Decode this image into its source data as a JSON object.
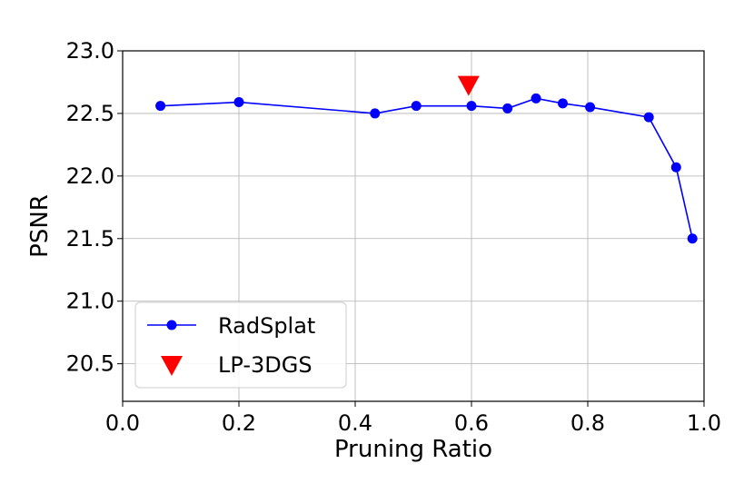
{
  "chart_data": {
    "type": "line",
    "title": "",
    "xlabel": "Pruning Ratio",
    "ylabel": "PSNR",
    "xlim": [
      0.0,
      1.0
    ],
    "ylim": [
      20.2,
      23.0
    ],
    "xticks": [
      0.0,
      0.2,
      0.4,
      0.6,
      0.8,
      1.0
    ],
    "xtick_labels": [
      "0.0",
      "0.2",
      "0.4",
      "0.6",
      "0.8",
      "1.0"
    ],
    "yticks": [
      20.5,
      21.0,
      21.5,
      22.0,
      22.5,
      23.0
    ],
    "ytick_labels": [
      "20.5",
      "21.0",
      "21.5",
      "22.0",
      "22.5",
      "23.0"
    ],
    "grid": true,
    "legend_position": "lower-left",
    "series": [
      {
        "name": "RadSplat",
        "color": "#0000ff",
        "marker": "circle",
        "line": true,
        "x": [
          0.065,
          0.2,
          0.434,
          0.505,
          0.6,
          0.662,
          0.711,
          0.757,
          0.804,
          0.905,
          0.952,
          0.98
        ],
        "y": [
          22.56,
          22.59,
          22.5,
          22.56,
          22.56,
          22.54,
          22.62,
          22.58,
          22.55,
          22.47,
          22.07,
          21.5
        ]
      },
      {
        "name": "LP-3DGS",
        "color": "#ff0000",
        "marker": "triangle-down",
        "line": false,
        "x": [
          0.595
        ],
        "y": [
          22.72
        ]
      }
    ]
  }
}
